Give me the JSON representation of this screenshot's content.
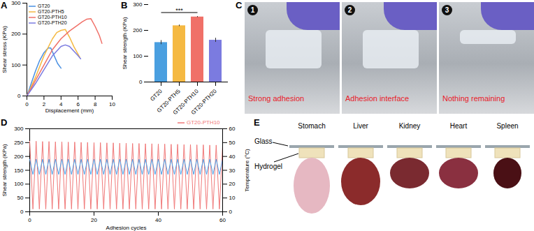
{
  "chart_data": [
    {
      "title": "A",
      "type": "line",
      "x_label": "Displacement (mm)",
      "y_label": "Shear stress (KPa)",
      "xlim": [
        0,
        10
      ],
      "xticks": [
        0,
        2,
        4,
        6,
        8,
        10
      ],
      "ylim": [
        0,
        300
      ],
      "yticks": [
        0,
        100,
        200,
        300
      ],
      "legend": "top-left",
      "series": [
        {
          "name": "GT20",
          "color": "#4a90e2",
          "x": [
            0,
            0.5,
            1,
            1.5,
            2,
            2.5,
            2.8,
            3.2,
            3.6,
            4.0
          ],
          "values": [
            0,
            40,
            80,
            115,
            140,
            155,
            155,
            130,
            105,
            90
          ]
        },
        {
          "name": "GT20-PTH5",
          "color": "#f5b942",
          "x": [
            0,
            1,
            2,
            3,
            3.5,
            4,
            4.5,
            5,
            5.5,
            6.2
          ],
          "values": [
            0,
            60,
            130,
            185,
            205,
            212,
            215,
            190,
            160,
            125
          ]
        },
        {
          "name": "GT20-PTH10",
          "color": "#f07068",
          "x": [
            0,
            1,
            2,
            3,
            4,
            5,
            6,
            6.5,
            7,
            7.5,
            8,
            8.5,
            8.8
          ],
          "values": [
            0,
            50,
            100,
            150,
            185,
            210,
            230,
            240,
            248,
            250,
            225,
            195,
            170
          ]
        },
        {
          "name": "GT20-PTH20",
          "color": "#7b7be0",
          "x": [
            0,
            1,
            2,
            3,
            4,
            4.5,
            5,
            5.5,
            6,
            6.3
          ],
          "values": [
            0,
            40,
            85,
            130,
            160,
            165,
            160,
            145,
            130,
            120
          ]
        }
      ]
    },
    {
      "title": "B",
      "type": "bar",
      "y_label": "Shear strength (KPa)",
      "categories": [
        "GT20",
        "GT20-PTH5",
        "GT20-PTH10",
        "GT20-PTH20"
      ],
      "values": [
        153,
        218,
        252,
        162
      ],
      "errors": [
        8,
        3,
        2,
        8
      ],
      "colors": [
        "#4a9fe0",
        "#f5b942",
        "#f07068",
        "#7b7be0"
      ],
      "ylim": [
        0,
        300
      ],
      "yticks": [
        0,
        100,
        200,
        300
      ],
      "annotations": [
        {
          "text": "***",
          "from": "GT20",
          "to": "GT20-PTH10"
        }
      ]
    },
    {
      "title": "D",
      "type": "line",
      "x_label": "Adhesion cycles",
      "y_label": "Shear strength (KPa)",
      "y2_label": "Temperature (°C)",
      "x": [
        0,
        1,
        2,
        3,
        4,
        5,
        6,
        7,
        8,
        9,
        10,
        11,
        12,
        13,
        14,
        15,
        16,
        17,
        18,
        19,
        20,
        21,
        22,
        23,
        24,
        25,
        26,
        27,
        28,
        29,
        30,
        31,
        32,
        33,
        34,
        35,
        36,
        37,
        38,
        39,
        40,
        41,
        42,
        43,
        44,
        45,
        46,
        47,
        48,
        49,
        50,
        51,
        52,
        53,
        54,
        55,
        56,
        57,
        58,
        59,
        60
      ],
      "xlim": [
        0,
        60
      ],
      "xticks": [
        0,
        20,
        40,
        60
      ],
      "ylim": [
        0,
        300
      ],
      "yticks": [
        0,
        50,
        100,
        150,
        200,
        250,
        300
      ],
      "y2lim": [
        0,
        60
      ],
      "y2ticks": [
        0,
        10,
        20,
        30,
        40,
        50,
        60
      ],
      "legend": "top-right",
      "series": [
        {
          "name": "GT20-PTH10",
          "color": "#f07878",
          "values": [
            255,
            10,
            255,
            10,
            254,
            10,
            254,
            10,
            253,
            10,
            253,
            10,
            252,
            10,
            252,
            10,
            251,
            10,
            251,
            10,
            250,
            10,
            250,
            10,
            249,
            10,
            249,
            10,
            248,
            10,
            248,
            10,
            247,
            10,
            247,
            10,
            246,
            10,
            246,
            10,
            245,
            10,
            245,
            10,
            244,
            10,
            244,
            10,
            243,
            10,
            243,
            10,
            242,
            10,
            242,
            10,
            241,
            10,
            241,
            10,
            240
          ]
        },
        {
          "color": "#4a9fe8",
          "axis": "y2",
          "values": [
            38,
            27,
            38,
            27,
            38,
            27,
            38,
            27,
            38,
            27,
            38,
            27,
            38,
            27,
            38,
            27,
            38,
            27,
            38,
            27,
            38,
            27,
            38,
            27,
            38,
            27,
            38,
            27,
            38,
            27,
            38,
            27,
            38,
            27,
            38,
            27,
            38,
            27,
            38,
            27,
            38,
            27,
            38,
            27,
            38,
            27,
            38,
            27,
            38,
            27,
            38,
            27,
            38,
            27,
            38,
            27,
            38,
            27,
            38,
            27,
            38
          ]
        }
      ]
    }
  ],
  "images": [
    {
      "title": "C",
      "frames": [
        {
          "number": "1",
          "caption": "Strong adhesion"
        },
        {
          "number": "2",
          "caption": "Adhesion interface"
        },
        {
          "number": "3",
          "caption": "Nothing remaining"
        }
      ]
    },
    {
      "title": "E",
      "labels": {
        "glass": "Glass",
        "hydrogel": "Hydrogel"
      },
      "organs": [
        "Stomach",
        "Liver",
        "Kidney",
        "Heart",
        "Spleen"
      ]
    }
  ]
}
